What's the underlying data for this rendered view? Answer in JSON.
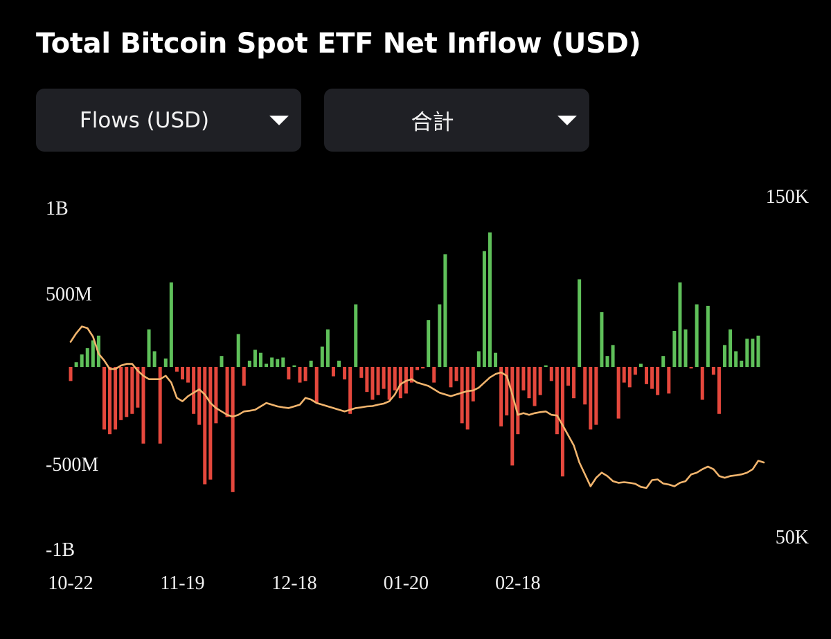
{
  "header": {
    "title": "Total Bitcoin Spot ETF Net Inflow (USD)"
  },
  "controls": {
    "metric_dropdown": {
      "value": "Flows (USD)",
      "icon": "caret-down-icon"
    },
    "aggregate_dropdown": {
      "value": "合計",
      "icon": "caret-down-icon"
    }
  },
  "colors": {
    "positive": "#5fc05a",
    "negative": "#e5483d",
    "price_line": "#f2b56e",
    "background": "#000000"
  },
  "chart_data": {
    "type": "bar",
    "title": "Total Bitcoin Spot ETF Net Inflow (USD)",
    "xlabel": "",
    "ylabel": "",
    "ylim": [
      -1000,
      1000
    ],
    "y_unit": "USD millions",
    "y_ticks": [
      "1B",
      "500M",
      "-500M",
      "-1B"
    ],
    "y2_ticks": [
      "150K",
      "50K"
    ],
    "y2lim": [
      50000,
      150000
    ],
    "x_ticks": [
      {
        "label": "10-22",
        "index": 0
      },
      {
        "label": "11-19",
        "index": 20
      },
      {
        "label": "12-18",
        "index": 40
      },
      {
        "label": "01-20",
        "index": 60
      },
      {
        "label": "02-18",
        "index": 80
      }
    ],
    "grid": false,
    "legend": "none",
    "series": [
      {
        "type": "bar",
        "values": [
          -90,
          30,
          80,
          120,
          170,
          200,
          -400,
          -430,
          -400,
          -340,
          -320,
          -300,
          -260,
          -490,
          240,
          100,
          -490,
          54,
          540,
          -30,
          -80,
          -100,
          -300,
          -370,
          -750,
          -720,
          -360,
          70,
          -320,
          -800,
          210,
          -120,
          40,
          110,
          90,
          20,
          60,
          50,
          60,
          -80,
          10,
          -100,
          -90,
          40,
          -230,
          130,
          240,
          -60,
          40,
          -80,
          -300,
          400,
          -70,
          -160,
          -210,
          -180,
          -140,
          -210,
          -150,
          -200,
          -170,
          -100,
          -20,
          -10,
          300,
          -100,
          400,
          720,
          -130,
          -90,
          -360,
          -400,
          -220,
          100,
          740,
          860,
          90,
          -380,
          -310,
          -630,
          -430,
          -150,
          -200,
          -250,
          -180,
          10,
          -90,
          -430,
          -700,
          -120,
          -200,
          560,
          -240,
          -400,
          -370,
          350,
          70,
          140,
          -330,
          -100,
          -130,
          -50,
          20,
          -110,
          -140,
          -180,
          70,
          -170,
          230,
          540,
          240,
          -10,
          400,
          -210,
          390,
          -50,
          -300,
          140,
          240,
          100,
          40,
          180,
          180,
          200
        ]
      },
      {
        "type": "line",
        "name": "",
        "axis": "right",
        "values": [
          107500,
          110000,
          112000,
          111500,
          109000,
          104000,
          102000,
          99500,
          99500,
          100500,
          101000,
          101000,
          99000,
          97500,
          96500,
          96500,
          96500,
          97500,
          95500,
          91000,
          90000,
          91500,
          92500,
          93500,
          92000,
          89500,
          88000,
          87000,
          86000,
          85500,
          86000,
          87000,
          87200,
          87500,
          88500,
          89500,
          89000,
          88500,
          88200,
          88000,
          88500,
          89000,
          91000,
          90500,
          89500,
          89000,
          88500,
          88000,
          87500,
          87000,
          87500,
          88000,
          88200,
          88500,
          88600,
          89000,
          89300,
          90000,
          92000,
          95000,
          96000,
          96500,
          95500,
          95000,
          94500,
          93500,
          92500,
          92000,
          91500,
          92000,
          92500,
          93000,
          93200,
          94000,
          95500,
          97000,
          98000,
          98500,
          97500,
          92000,
          86000,
          86500,
          86000,
          86500,
          86800,
          87000,
          86000,
          85800,
          83000,
          80000,
          77000,
          72000,
          68500,
          65000,
          67500,
          69000,
          68000,
          66500,
          66000,
          66200,
          66000,
          65700,
          64800,
          64500,
          66800,
          67000,
          65800,
          65500,
          65000,
          66000,
          66500,
          68500,
          69000,
          70000,
          70800,
          70000,
          68000,
          67500,
          68000,
          68200,
          68500,
          69000,
          70000,
          72500,
          72000
        ]
      }
    ]
  }
}
